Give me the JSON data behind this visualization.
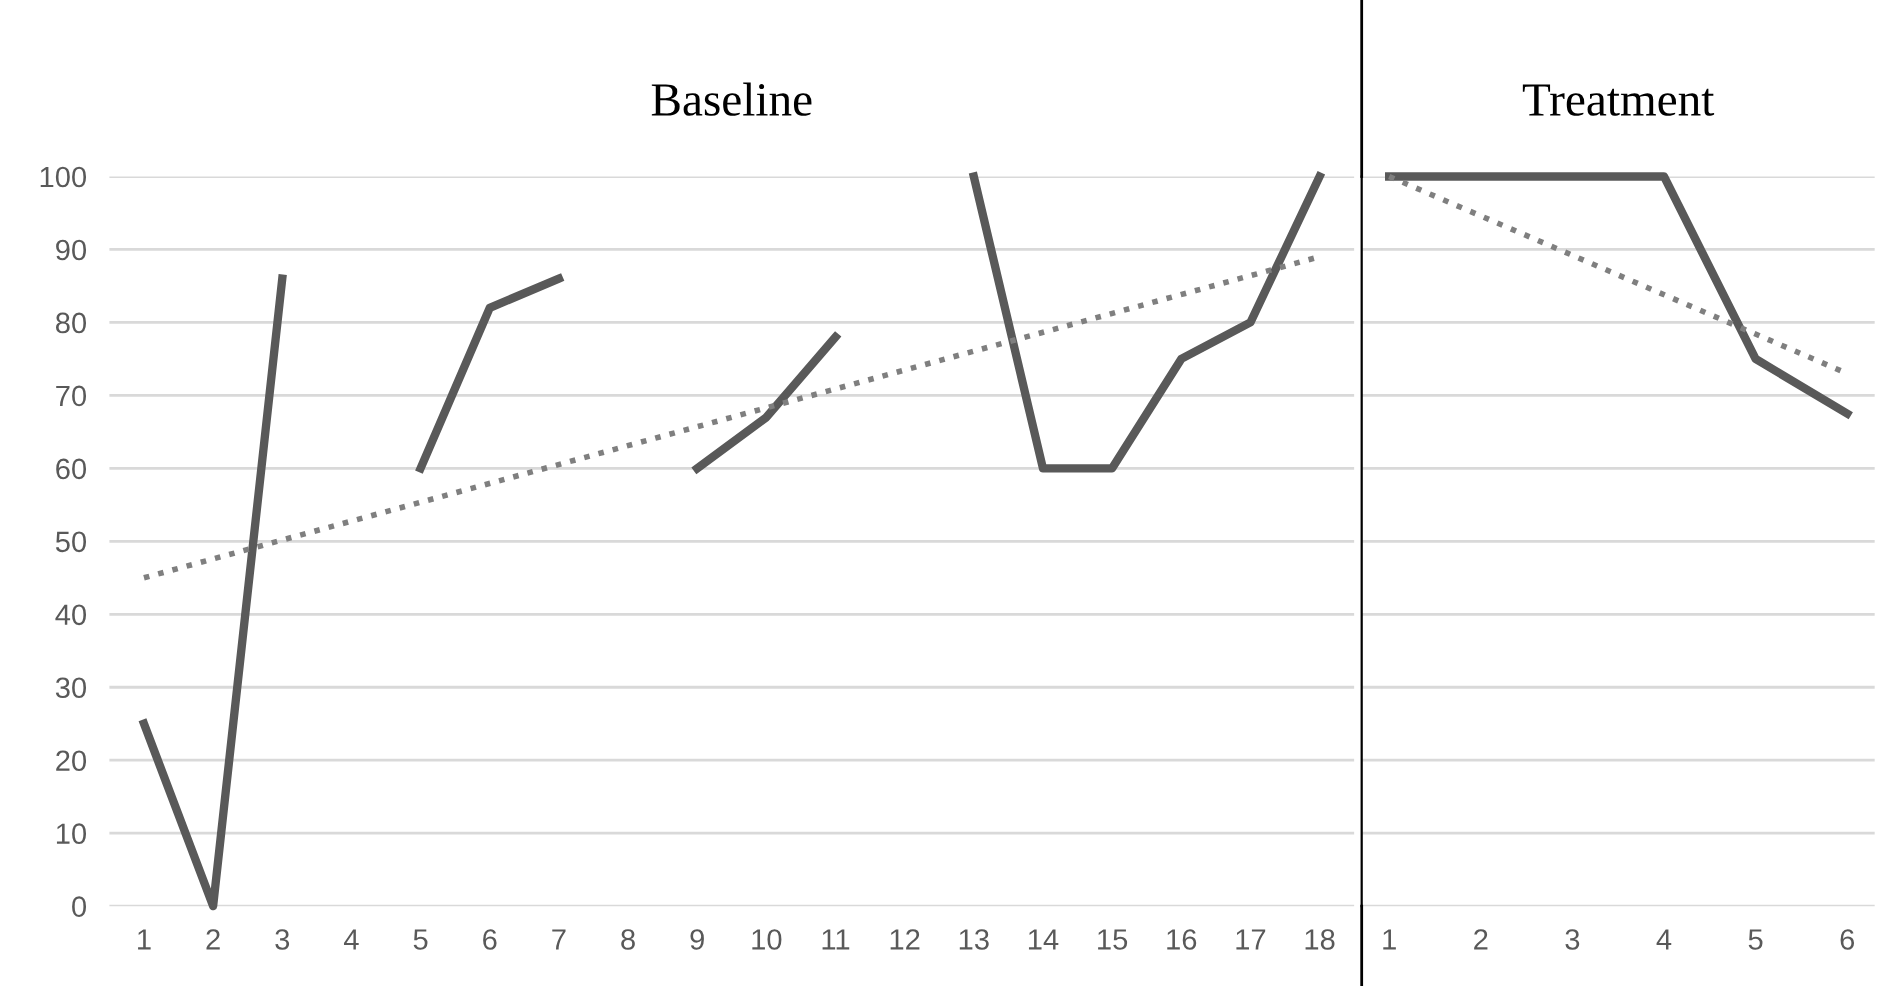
{
  "chart_data": [
    {
      "type": "line",
      "title": "Baseline",
      "x": [
        1,
        2,
        3,
        4,
        5,
        6,
        7,
        8,
        9,
        10,
        11,
        12,
        13,
        14,
        15,
        16,
        17,
        18
      ],
      "series": [
        {
          "color": "#595959",
          "line_style": "solid",
          "values": [
            25,
            0,
            86,
            null,
            60,
            82,
            86,
            null,
            60,
            67,
            78,
            null,
            100,
            60,
            60,
            75,
            80,
            100
          ]
        },
        {
          "color": "#7f7f7f",
          "line_style": "dotted",
          "x": [
            1,
            18
          ],
          "values": [
            45,
            89
          ]
        }
      ],
      "xlim": [
        0.5,
        18.5
      ],
      "xticks": [
        1,
        2,
        3,
        4,
        5,
        6,
        7,
        8,
        9,
        10,
        11,
        12,
        13,
        14,
        15,
        16,
        17,
        18
      ],
      "ylim": [
        0,
        100
      ],
      "yticks": [
        0,
        10,
        20,
        30,
        40,
        50,
        60,
        70,
        80,
        90,
        100
      ],
      "grid": "y",
      "marker": "none"
    },
    {
      "type": "line",
      "title": "Treatment",
      "x": [
        1,
        2,
        3,
        4,
        5,
        6
      ],
      "series": [
        {
          "color": "#595959",
          "line_style": "solid",
          "values": [
            100,
            100,
            100,
            100,
            75,
            67.5
          ]
        },
        {
          "color": "#7f7f7f",
          "line_style": "dotted",
          "x": [
            1,
            6
          ],
          "values": [
            100,
            73
          ]
        }
      ],
      "xlim": [
        0.7,
        6.3
      ],
      "xticks": [
        1,
        2,
        3,
        4,
        5,
        6
      ],
      "ylim": [
        0,
        100
      ],
      "yticks": [
        0,
        10,
        20,
        30,
        40,
        50,
        60,
        70,
        80,
        90,
        100
      ],
      "grid": "y",
      "marker": "none",
      "tick_labels": "x"
    }
  ]
}
